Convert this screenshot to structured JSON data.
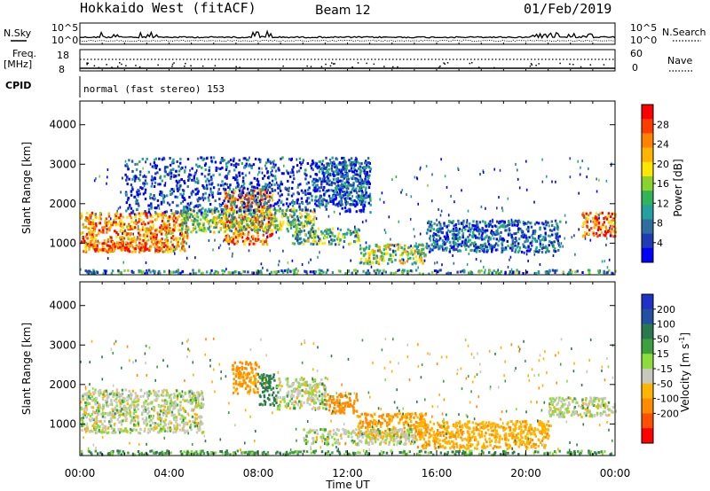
{
  "header": {
    "title": "Hokkaido West (fitACF)",
    "beam": "Beam 12",
    "date": "01/Feb/2019"
  },
  "top_panels": {
    "nsky_label": "N.Sky",
    "nsearch_label": "N.Search",
    "nsky_ticks": [
      "10^5",
      "10^0"
    ],
    "nsearch_ticks": [
      "10^5",
      "10^0"
    ],
    "freq_label": "Freq.",
    "freq_unit": "[MHz]",
    "freq_ticks": [
      "18",
      "8"
    ],
    "nave_label": "Nave",
    "nave_ticks": [
      "60",
      "0"
    ],
    "cpid_label": "CPID",
    "cpid_text": "normal (fast stereo) 153"
  },
  "chart_data": [
    {
      "type": "heatmap",
      "name": "power",
      "ylabel": "Slant Range [km]",
      "xlabel": "",
      "yticks": [
        1000,
        2000,
        3000,
        4000
      ],
      "ylim": [
        200,
        4600
      ],
      "xlim_hours": [
        0,
        24
      ],
      "colorbar": {
        "label": "Power [dB]",
        "range": [
          0,
          32
        ],
        "tick_values": [
          4,
          8,
          12,
          16,
          20,
          24,
          28
        ],
        "colors": [
          "#0000ff",
          "#1e3cb4",
          "#2f6fa0",
          "#25a0a0",
          "#2fb45a",
          "#8cd22d",
          "#ffe600",
          "#ffb400",
          "#ff8200",
          "#ff3c00",
          "#ff0000"
        ]
      },
      "regions": [
        {
          "t": [
            0.0,
            4.8
          ],
          "r": [
            800,
            1800
          ],
          "level": 0.75
        },
        {
          "t": [
            0.3,
            3.0
          ],
          "r": [
            850,
            1050
          ],
          "level": 0.9
        },
        {
          "t": [
            6.4,
            8.6
          ],
          "r": [
            1000,
            2400
          ],
          "level": 0.8
        },
        {
          "t": [
            4.5,
            10.5
          ],
          "r": [
            1300,
            1900
          ],
          "level": 0.45
        },
        {
          "t": [
            9.5,
            12.5
          ],
          "r": [
            1000,
            1400
          ],
          "level": 0.4
        },
        {
          "t": [
            12.5,
            15.5
          ],
          "r": [
            500,
            1000
          ],
          "level": 0.5
        },
        {
          "t": [
            15.5,
            21.5
          ],
          "r": [
            800,
            1600
          ],
          "level": 0.2
        },
        {
          "t": [
            22.5,
            24.0
          ],
          "r": [
            1200,
            1800
          ],
          "level": 0.8
        },
        {
          "t": [
            0.0,
            24.0
          ],
          "r": [
            250,
            350
          ],
          "level": 0.3
        },
        {
          "t": [
            2.0,
            13.0
          ],
          "r": [
            1800,
            3200
          ],
          "level": 0.15
        },
        {
          "t": [
            10.5,
            13.0
          ],
          "r": [
            2000,
            3100
          ],
          "level": 0.2
        }
      ]
    },
    {
      "type": "heatmap",
      "name": "velocity",
      "ylabel": "Slant Range [km]",
      "xlabel": "Time UT",
      "yticks": [
        1000,
        2000,
        3000,
        4000
      ],
      "ylim": [
        200,
        4600
      ],
      "xlim_hours": [
        0,
        24
      ],
      "xticks": [
        "00:00",
        "04:00",
        "08:00",
        "12:00",
        "16:00",
        "20:00",
        "00:00"
      ],
      "xtick_hours": [
        0,
        4,
        8,
        12,
        16,
        20,
        24
      ],
      "colorbar": {
        "label": "Velocity [m s^-1]",
        "tick_labels": [
          "200",
          "100",
          "50",
          "15",
          "-15",
          "-50",
          "-100",
          "-200"
        ],
        "colors": [
          "#1e32c8",
          "#2350a0",
          "#2a7850",
          "#3ca03c",
          "#8cdc3c",
          "#c8c8be",
          "#ffb400",
          "#ff8c00",
          "#ff5000",
          "#ff0000"
        ]
      },
      "regions": [
        {
          "t": [
            0.0,
            5.5
          ],
          "r": [
            800,
            1900
          ],
          "v": 0
        },
        {
          "t": [
            6.8,
            8.0
          ],
          "r": [
            1800,
            2600
          ],
          "v": -60
        },
        {
          "t": [
            8.0,
            8.8
          ],
          "r": [
            1500,
            2300
          ],
          "v": 40
        },
        {
          "t": [
            8.8,
            11.0
          ],
          "r": [
            1400,
            2200
          ],
          "v": 0
        },
        {
          "t": [
            11.0,
            12.4
          ],
          "r": [
            1300,
            1800
          ],
          "v": -80
        },
        {
          "t": [
            12.4,
            15.5
          ],
          "r": [
            700,
            1300
          ],
          "v": -50
        },
        {
          "t": [
            10.0,
            15.0
          ],
          "r": [
            500,
            900
          ],
          "v": 0
        },
        {
          "t": [
            15.0,
            21.0
          ],
          "r": [
            400,
            1100
          ],
          "v": -40
        },
        {
          "t": [
            21.0,
            24.0
          ],
          "r": [
            1200,
            1700
          ],
          "v": 0
        },
        {
          "t": [
            0.0,
            24.0
          ],
          "r": [
            250,
            350
          ],
          "v": 25
        }
      ]
    }
  ]
}
